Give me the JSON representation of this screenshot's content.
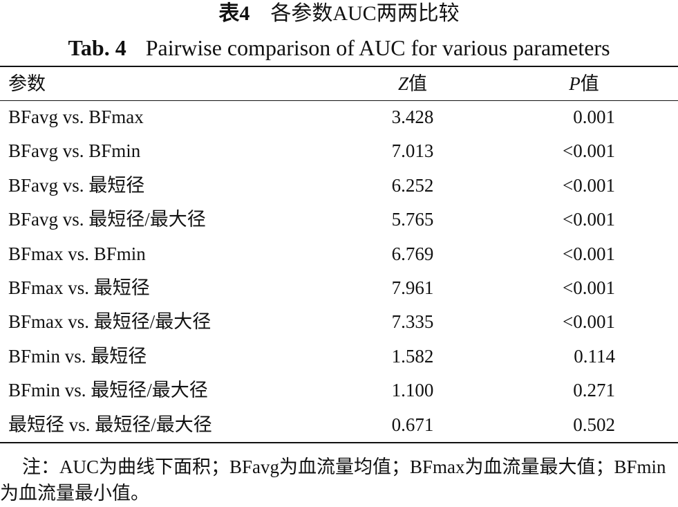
{
  "header": {
    "label_cn": "表4",
    "title_cn": "各参数AUC两两比较",
    "label_en": "Tab. 4",
    "title_en": "Pairwise comparison of AUC for various parameters"
  },
  "table": {
    "columns": [
      "参数",
      {
        "symbol": "Z",
        "suffix": "值"
      },
      {
        "symbol": "P",
        "suffix": "值"
      }
    ],
    "rows": [
      [
        "BFavg vs. BFmax",
        "3.428",
        "0.001"
      ],
      [
        "BFavg vs. BFmin",
        "7.013",
        "<0.001"
      ],
      [
        "BFavg vs. 最短径",
        "6.252",
        "<0.001"
      ],
      [
        "BFavg vs. 最短径/最大径",
        "5.765",
        "<0.001"
      ],
      [
        "BFmax vs. BFmin",
        "6.769",
        "<0.001"
      ],
      [
        "BFmax vs. 最短径",
        "7.961",
        "<0.001"
      ],
      [
        "BFmax vs. 最短径/最大径",
        "7.335",
        "<0.001"
      ],
      [
        "BFmin vs. 最短径",
        "1.582",
        "0.114"
      ],
      [
        "BFmin vs. 最短径/最大径",
        "1.100",
        "0.271"
      ],
      [
        "最短径 vs. 最短径/最大径",
        "0.671",
        "0.502"
      ]
    ]
  },
  "footnote": "注：AUC为曲线下面积；BFavg为血流量均值；BFmax为血流量最大值；BFmin为血流量最小值。"
}
